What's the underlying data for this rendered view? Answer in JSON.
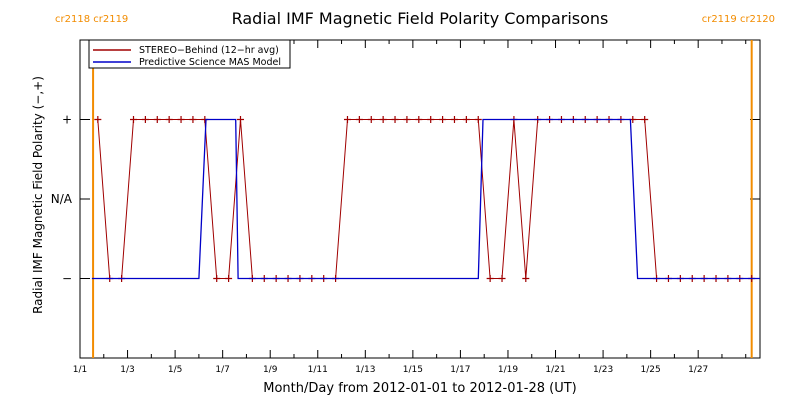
{
  "chart_data": {
    "type": "line",
    "title": "Radial IMF Magnetic Field Polarity Comparisons",
    "xlabel": "Month/Day from 2012-01-01 to 2012-01-28 (UT)",
    "ylabel": "Radial IMF Magnetic Field Polarity (−,+)",
    "x_tick_labels": [
      "1/1",
      "1/3",
      "1/5",
      "1/7",
      "1/9",
      "1/11",
      "1/13",
      "1/15",
      "1/17",
      "1/19",
      "1/21",
      "1/23",
      "1/25",
      "1/27"
    ],
    "x_tick_days": [
      1,
      3,
      5,
      7,
      9,
      11,
      13,
      15,
      17,
      19,
      21,
      23,
      25,
      27
    ],
    "xlim": [
      1,
      29.6
    ],
    "y_tick_labels": [
      "−",
      "N/A",
      "+"
    ],
    "y_tick_values": [
      -1,
      0,
      1
    ],
    "ylim": [
      -2,
      2
    ],
    "carrington_labels": [
      {
        "text": "cr2118 cr2119",
        "day": 1.55,
        "side": "left"
      },
      {
        "text": "cr2119 cr2120",
        "day": 29.25,
        "side": "right"
      }
    ],
    "carrington_color": "#f28c00",
    "legend_position": "top-left",
    "series": [
      {
        "name": "STEREO−Behind (12−hr avg)",
        "color": "#a00000",
        "marker": "plus",
        "points": [
          [
            1.75,
            1
          ],
          [
            2.25,
            -1
          ],
          [
            2.75,
            -1
          ],
          [
            3.25,
            1
          ],
          [
            3.75,
            1
          ],
          [
            4.25,
            1
          ],
          [
            4.75,
            1
          ],
          [
            5.25,
            1
          ],
          [
            5.75,
            1
          ],
          [
            6.25,
            1
          ],
          [
            6.75,
            -1
          ],
          [
            7.25,
            -1
          ],
          [
            7.75,
            1
          ],
          [
            8.25,
            -1
          ],
          [
            8.75,
            -1
          ],
          [
            9.25,
            -1
          ],
          [
            9.75,
            -1
          ],
          [
            10.25,
            -1
          ],
          [
            10.75,
            -1
          ],
          [
            11.25,
            -1
          ],
          [
            11.75,
            -1
          ],
          [
            12.25,
            1
          ],
          [
            12.75,
            1
          ],
          [
            13.25,
            1
          ],
          [
            13.75,
            1
          ],
          [
            14.25,
            1
          ],
          [
            14.75,
            1
          ],
          [
            15.25,
            1
          ],
          [
            15.75,
            1
          ],
          [
            16.25,
            1
          ],
          [
            16.75,
            1
          ],
          [
            17.25,
            1
          ],
          [
            17.75,
            1
          ],
          [
            18.25,
            -1
          ],
          [
            18.75,
            -1
          ],
          [
            19.25,
            1
          ],
          [
            19.75,
            -1
          ],
          [
            20.25,
            1
          ],
          [
            20.75,
            1
          ],
          [
            21.25,
            1
          ],
          [
            21.75,
            1
          ],
          [
            22.25,
            1
          ],
          [
            22.75,
            1
          ],
          [
            23.25,
            1
          ],
          [
            23.75,
            1
          ],
          [
            24.25,
            1
          ],
          [
            24.75,
            1
          ],
          [
            25.25,
            -1
          ],
          [
            25.75,
            -1
          ],
          [
            26.25,
            -1
          ],
          [
            26.75,
            -1
          ],
          [
            27.25,
            -1
          ],
          [
            27.75,
            -1
          ],
          [
            28.25,
            -1
          ],
          [
            28.75,
            -1
          ],
          [
            29.25,
            -1
          ]
        ]
      },
      {
        "name": "Predictive Science MAS Model",
        "color": "#0000c8",
        "marker": "none",
        "points": [
          [
            1.5,
            -1
          ],
          [
            6.0,
            -1
          ],
          [
            6.3,
            1
          ],
          [
            7.55,
            1
          ],
          [
            7.65,
            -1
          ],
          [
            17.75,
            -1
          ],
          [
            17.95,
            1
          ],
          [
            24.15,
            1
          ],
          [
            24.45,
            -1
          ],
          [
            29.6,
            -1
          ]
        ]
      }
    ]
  }
}
